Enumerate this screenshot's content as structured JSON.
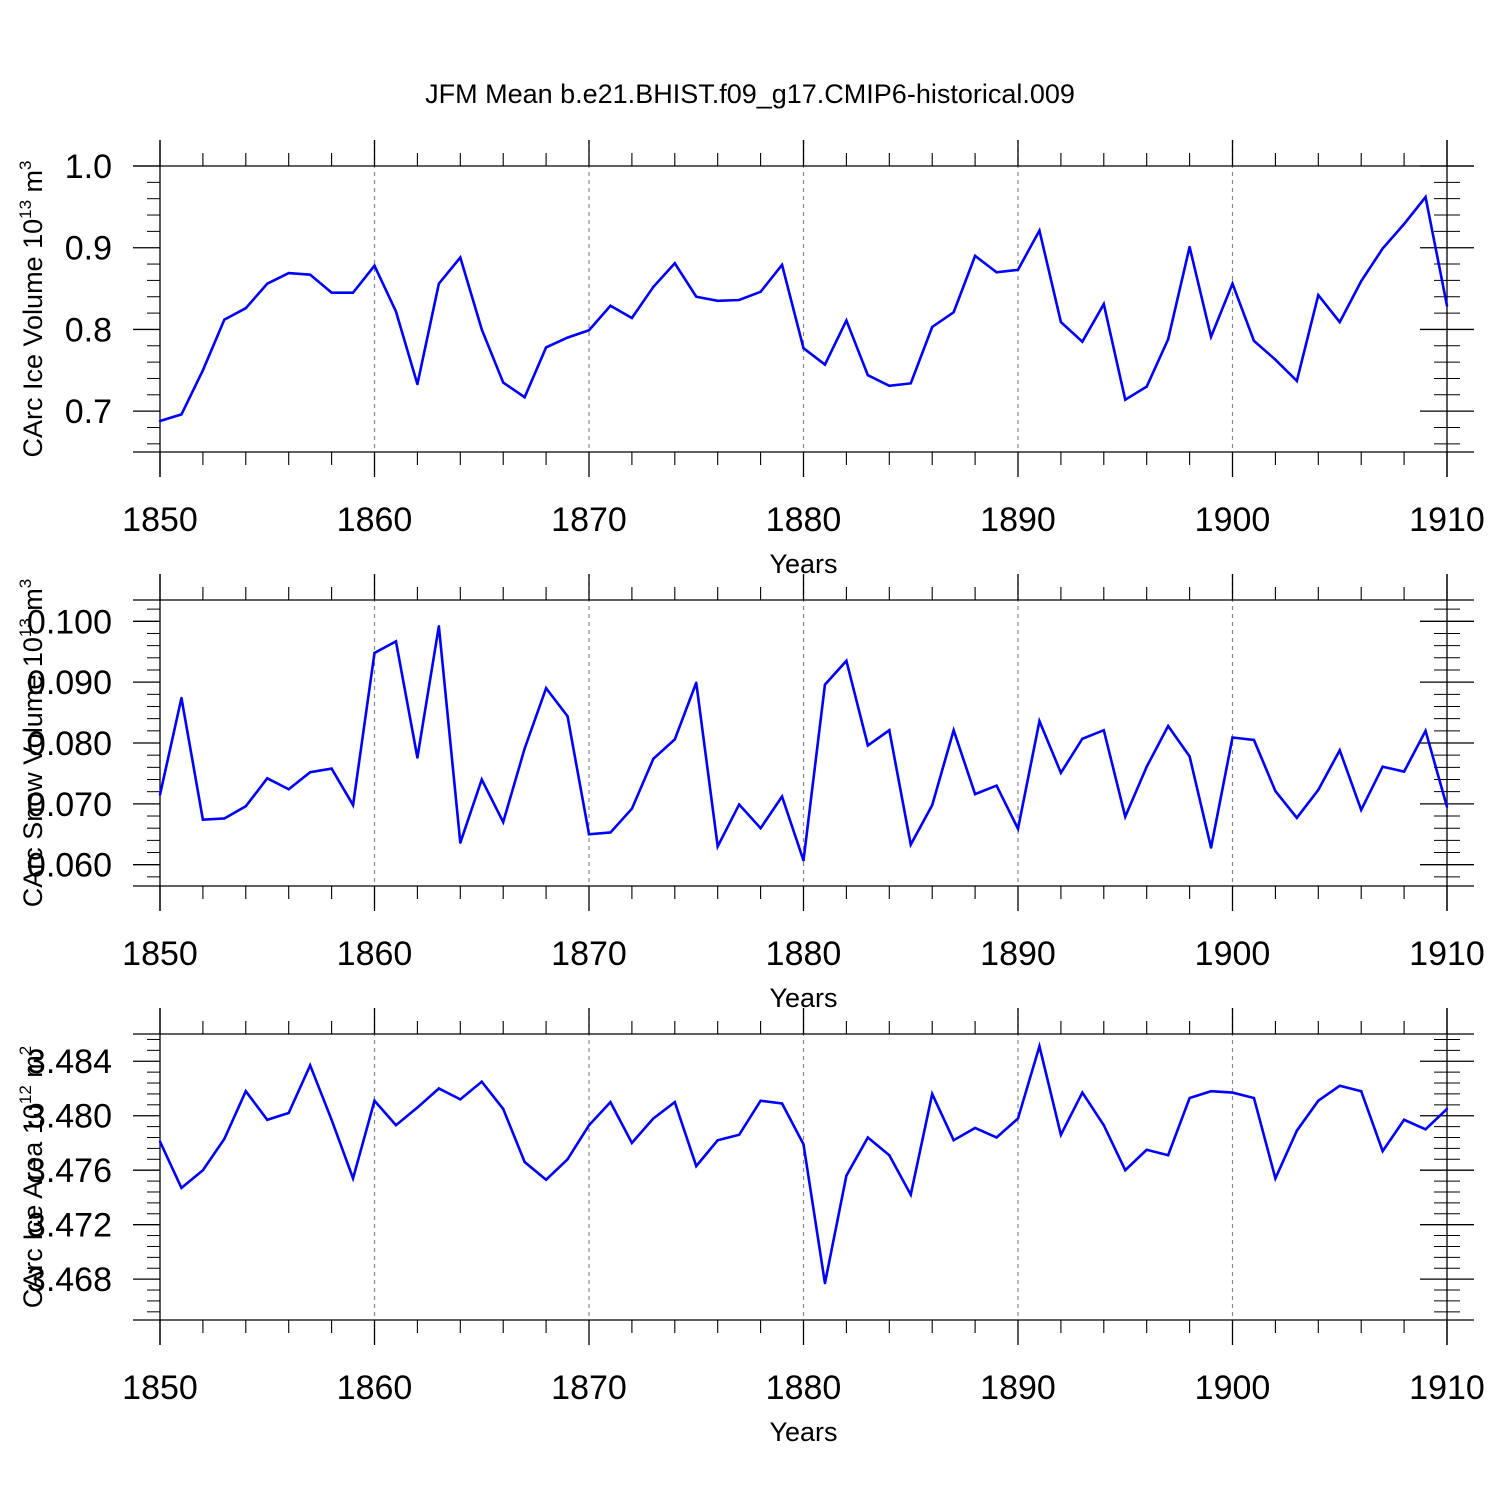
{
  "title": "JFM Mean b.e21.BHIST.f09_g17.CMIP6-historical.009",
  "line_color": "#0000ff",
  "chart_data": [
    {
      "type": "line",
      "ylabel": "CArc Ice Volume 10",
      "ylabel_sup": "13",
      "ylabel_unit": "m",
      "ylabel_unit_sup": "3",
      "xlabel": "Years",
      "xlim": [
        1850,
        1910
      ],
      "ylim": [
        0.65,
        1.0
      ],
      "x_ticks": [
        1850,
        1860,
        1870,
        1880,
        1890,
        1900,
        1910
      ],
      "x_tick_labels": [
        "1850",
        "1860",
        "1870",
        "1880",
        "1890",
        "1900",
        "1910"
      ],
      "y_ticks": [
        0.7,
        0.8,
        0.9,
        1.0
      ],
      "y_tick_labels": [
        "0.7",
        "0.8",
        "0.9",
        "1.0"
      ],
      "y_minor_step": 0.02,
      "grid": "dashed vertical at major x ticks",
      "x_start": 1850,
      "values": [
        0.688,
        0.696,
        0.75,
        0.812,
        0.826,
        0.856,
        0.869,
        0.867,
        0.845,
        0.845,
        0.878,
        0.822,
        0.733,
        0.856,
        0.888,
        0.8,
        0.735,
        0.717,
        0.778,
        0.79,
        0.799,
        0.829,
        0.814,
        0.852,
        0.881,
        0.84,
        0.835,
        0.836,
        0.846,
        0.879,
        0.777,
        0.757,
        0.811,
        0.744,
        0.731,
        0.734,
        0.803,
        0.821,
        0.89,
        0.87,
        0.873,
        0.921,
        0.809,
        0.785,
        0.831,
        0.714,
        0.73,
        0.788,
        0.901,
        0.791,
        0.856,
        0.786,
        0.763,
        0.737,
        0.842,
        0.809,
        0.859,
        0.899,
        0.929,
        0.962,
        0.829
      ]
    },
    {
      "type": "line",
      "ylabel": "CArc Snow Volume 10",
      "ylabel_sup": "13",
      "ylabel_unit": "m",
      "ylabel_unit_sup": "3",
      "xlabel": "Years",
      "xlim": [
        1850,
        1910
      ],
      "ylim": [
        0.0565,
        0.1035
      ],
      "x_ticks": [
        1850,
        1860,
        1870,
        1880,
        1890,
        1900,
        1910
      ],
      "x_tick_labels": [
        "1850",
        "1860",
        "1870",
        "1880",
        "1890",
        "1900",
        "1910"
      ],
      "y_ticks": [
        0.06,
        0.07,
        0.08,
        0.09,
        0.1
      ],
      "y_tick_labels": [
        "0.060",
        "0.070",
        "0.080",
        "0.090",
        "0.100"
      ],
      "y_minor_step": 0.002,
      "grid": "dashed vertical at major x ticks",
      "x_start": 1850,
      "values": [
        0.0715,
        0.0874,
        0.0674,
        0.0676,
        0.0696,
        0.0742,
        0.0724,
        0.0752,
        0.0758,
        0.0698,
        0.0948,
        0.0967,
        0.0776,
        0.0992,
        0.0636,
        0.074,
        0.067,
        0.0791,
        0.089,
        0.0844,
        0.065,
        0.0653,
        0.0692,
        0.0774,
        0.0806,
        0.0899,
        0.063,
        0.0699,
        0.066,
        0.0712,
        0.0607,
        0.0896,
        0.0935,
        0.0796,
        0.0821,
        0.0633,
        0.0698,
        0.0821,
        0.0716,
        0.073,
        0.0659,
        0.0836,
        0.0751,
        0.0807,
        0.0821,
        0.0679,
        0.0761,
        0.0828,
        0.0778,
        0.0628,
        0.0809,
        0.0805,
        0.0721,
        0.0677,
        0.0723,
        0.0788,
        0.069,
        0.0761,
        0.0753,
        0.082,
        0.0695
      ]
    },
    {
      "type": "line",
      "ylabel": "CArc Ice Area 10",
      "ylabel_sup": "12",
      "ylabel_unit": "m",
      "ylabel_unit_sup": "2",
      "xlabel": "Years",
      "xlim": [
        1850,
        1910
      ],
      "ylim": [
        3.465,
        3.486
      ],
      "x_ticks": [
        1850,
        1860,
        1870,
        1880,
        1890,
        1900,
        1910
      ],
      "x_tick_labels": [
        "1850",
        "1860",
        "1870",
        "1880",
        "1890",
        "1900",
        "1910"
      ],
      "y_ticks": [
        3.468,
        3.472,
        3.476,
        3.48,
        3.484
      ],
      "y_tick_labels": [
        "3.468",
        "3.472",
        "3.476",
        "3.480",
        "3.484"
      ],
      "y_minor_step": 0.0008,
      "grid": "dashed vertical at major x ticks",
      "x_start": 1850,
      "values": [
        3.4781,
        3.4747,
        3.476,
        3.4783,
        3.4818,
        3.4797,
        3.4802,
        3.4837,
        3.4797,
        3.4754,
        3.4811,
        3.4793,
        3.4806,
        3.482,
        3.4812,
        3.4825,
        3.4805,
        3.4766,
        3.4753,
        3.4768,
        3.4793,
        3.481,
        3.478,
        3.4798,
        3.481,
        3.4763,
        3.4782,
        3.4786,
        3.4811,
        3.4809,
        3.4779,
        3.4677,
        3.4756,
        3.4784,
        3.4771,
        3.4742,
        3.4816,
        3.4782,
        3.4791,
        3.4784,
        3.4798,
        3.4851,
        3.4786,
        3.4817,
        3.4793,
        3.476,
        3.4775,
        3.4771,
        3.4813,
        3.4818,
        3.4817,
        3.4813,
        3.4754,
        3.4789,
        3.4811,
        3.4822,
        3.4818,
        3.4774,
        3.4797,
        3.479,
        3.4805
      ]
    }
  ]
}
